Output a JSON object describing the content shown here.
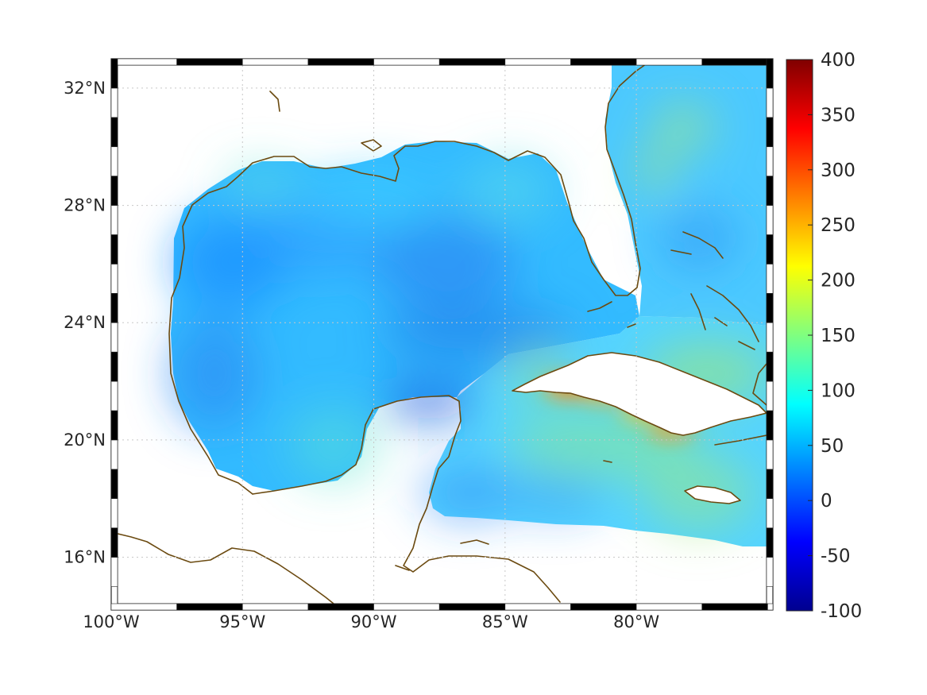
{
  "map": {
    "extent": {
      "lon": [
        -100,
        -74.8
      ],
      "lat": [
        14.2,
        33
      ]
    },
    "lon_ticks": [
      {
        "value": -100,
        "label": "100°W"
      },
      {
        "value": -95,
        "label": "95°W"
      },
      {
        "value": -90,
        "label": "90°W"
      },
      {
        "value": -85,
        "label": "85°W"
      },
      {
        "value": -80,
        "label": "80°W"
      }
    ],
    "lat_ticks": [
      {
        "value": 16,
        "label": "16°N"
      },
      {
        "value": 20,
        "label": "20°N"
      },
      {
        "value": 24,
        "label": "24°N"
      },
      {
        "value": 28,
        "label": "28°N"
      },
      {
        "value": 32,
        "label": "32°N"
      }
    ],
    "coastline_color": "#6b4a10",
    "grid": true,
    "frame_style": "black-white-checkered"
  },
  "colorbar": {
    "min": -100,
    "max": 400,
    "colormap": "jet",
    "ticks": [
      {
        "value": 400,
        "label": "400"
      },
      {
        "value": 350,
        "label": "350"
      },
      {
        "value": 300,
        "label": "300"
      },
      {
        "value": 250,
        "label": "250"
      },
      {
        "value": 200,
        "label": "200"
      },
      {
        "value": 150,
        "label": "150"
      },
      {
        "value": 100,
        "label": "100"
      },
      {
        "value": 50,
        "label": "50"
      },
      {
        "value": 0,
        "label": "0"
      },
      {
        "value": -50,
        "label": "-50"
      },
      {
        "value": -100,
        "label": "-100"
      }
    ]
  },
  "field": {
    "background_value": 65,
    "features": [
      {
        "region": "western Gulf",
        "lon": -96,
        "lat": 24,
        "value": 45
      },
      {
        "region": "central Gulf",
        "lon": -92,
        "lat": 25.5,
        "value": 55
      },
      {
        "region": "eastern Gulf",
        "lon": -86,
        "lat": 26,
        "value": 70
      },
      {
        "region": "Yucatan Channel",
        "lon": -85.5,
        "lat": 21.8,
        "value": 30
      },
      {
        "region": "southern Cuba",
        "lon": -82.5,
        "lat": 21.9,
        "value": 250
      },
      {
        "region": "southern Cuba east",
        "lon": -79.2,
        "lat": 20.6,
        "value": 255
      },
      {
        "region": "Caribbean",
        "lon": -80.5,
        "lat": 18.5,
        "value": 130
      },
      {
        "region": "Bahamas",
        "lon": -77,
        "lat": 23.5,
        "value": 140
      },
      {
        "region": "Atlantic off Georgia",
        "lon": -79.5,
        "lat": 30,
        "value": 130
      }
    ]
  }
}
